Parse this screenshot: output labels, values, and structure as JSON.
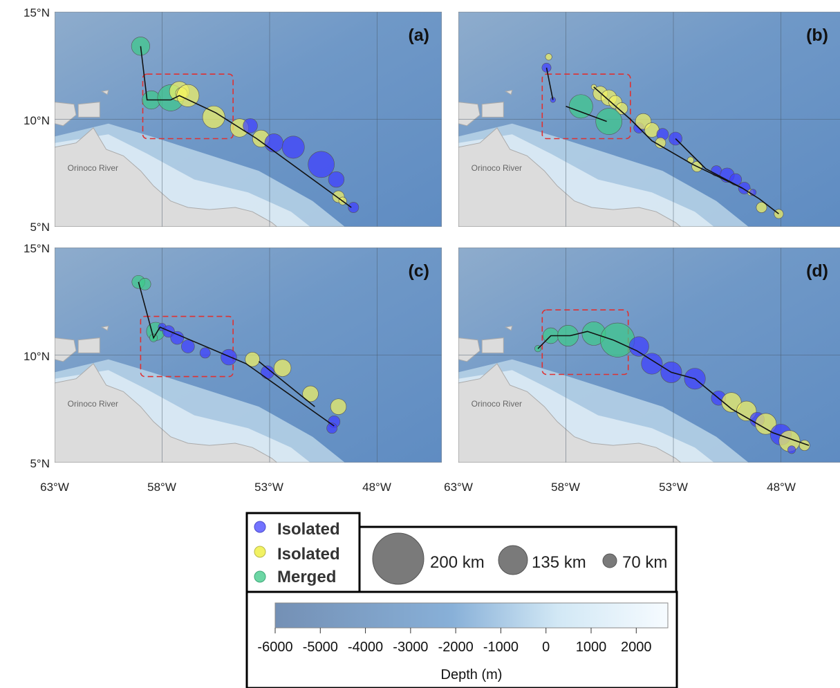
{
  "panels": [
    {
      "label": "(a)",
      "river_label": "Orinoco River",
      "track": [
        [
          -59.0,
          13.4
        ],
        [
          -58.7,
          10.9
        ],
        [
          -57.6,
          10.9
        ],
        [
          -57.2,
          11.1
        ],
        [
          -55.5,
          10.3
        ],
        [
          -53.6,
          9.1
        ],
        [
          -49.2,
          5.9
        ]
      ],
      "eddies": [
        {
          "lon": -59.0,
          "lat": 13.4,
          "size_km": 70,
          "type": "merged"
        },
        {
          "lon": -58.5,
          "lat": 10.9,
          "size_km": 70,
          "type": "merged"
        },
        {
          "lon": -57.6,
          "lat": 11.0,
          "size_km": 100,
          "type": "merged"
        },
        {
          "lon": -57.2,
          "lat": 11.3,
          "size_km": 75,
          "type": "isolated_yellow"
        },
        {
          "lon": -57.1,
          "lat": 11.2,
          "size_km": 45,
          "type": "isolated_yellow"
        },
        {
          "lon": -56.8,
          "lat": 11.1,
          "size_km": 85,
          "type": "isolated_yellow"
        },
        {
          "lon": -55.6,
          "lat": 10.1,
          "size_km": 85,
          "type": "isolated_yellow"
        },
        {
          "lon": -54.4,
          "lat": 9.6,
          "size_km": 70,
          "type": "isolated_yellow"
        },
        {
          "lon": -53.9,
          "lat": 9.7,
          "size_km": 55,
          "type": "isolated_blue"
        },
        {
          "lon": -53.4,
          "lat": 9.1,
          "size_km": 65,
          "type": "isolated_yellow"
        },
        {
          "lon": -52.8,
          "lat": 8.9,
          "size_km": 70,
          "type": "isolated_blue"
        },
        {
          "lon": -51.9,
          "lat": 8.7,
          "size_km": 85,
          "type": "isolated_blue"
        },
        {
          "lon": -50.6,
          "lat": 7.9,
          "size_km": 100,
          "type": "isolated_blue"
        },
        {
          "lon": -49.9,
          "lat": 7.2,
          "size_km": 60,
          "type": "isolated_blue"
        },
        {
          "lon": -49.8,
          "lat": 6.4,
          "size_km": 45,
          "type": "isolated_yellow"
        },
        {
          "lon": -49.6,
          "lat": 6.2,
          "size_km": 30,
          "type": "isolated_yellow"
        },
        {
          "lon": -49.1,
          "lat": 5.9,
          "size_km": 40,
          "type": "isolated_blue"
        }
      ],
      "box": {
        "lon_min": -58.9,
        "lon_max": -54.7,
        "lat_min": 9.1,
        "lat_max": 12.1
      }
    },
    {
      "label": "(b)",
      "river_label": "Orinoco River",
      "track": [
        [
          -58.9,
          12.4
        ],
        [
          -58.6,
          10.9
        ]
      ],
      "track2": [
        [
          -58.0,
          10.6
        ],
        [
          -56.1,
          9.9
        ]
      ],
      "track3": [
        [
          -56.7,
          11.5
        ],
        [
          -55.0,
          10.0
        ],
        [
          -54.0,
          9.0
        ],
        [
          -52.1,
          7.9
        ],
        [
          -49.8,
          6.8
        ],
        [
          -49.0,
          6.3
        ],
        [
          -48.1,
          5.6
        ]
      ],
      "track4": [
        [
          -52.9,
          9.1
        ],
        [
          -51.5,
          7.7
        ],
        [
          -49.8,
          6.8
        ]
      ],
      "eddies": [
        {
          "lon": -58.8,
          "lat": 12.9,
          "size_km": 25,
          "type": "isolated_yellow"
        },
        {
          "lon": -58.9,
          "lat": 12.4,
          "size_km": 35,
          "type": "isolated_blue"
        },
        {
          "lon": -58.6,
          "lat": 10.9,
          "size_km": 20,
          "type": "isolated_blue"
        },
        {
          "lon": -57.3,
          "lat": 10.6,
          "size_km": 90,
          "type": "merged"
        },
        {
          "lon": -56.7,
          "lat": 11.5,
          "size_km": 20,
          "type": "isolated_yellow"
        },
        {
          "lon": -56.4,
          "lat": 11.2,
          "size_km": 55,
          "type": "isolated_yellow"
        },
        {
          "lon": -56.0,
          "lat": 11.0,
          "size_km": 60,
          "type": "isolated_yellow"
        },
        {
          "lon": -55.7,
          "lat": 10.8,
          "size_km": 50,
          "type": "isolated_yellow"
        },
        {
          "lon": -55.4,
          "lat": 10.5,
          "size_km": 45,
          "type": "isolated_yellow"
        },
        {
          "lon": -56.0,
          "lat": 9.9,
          "size_km": 100,
          "type": "merged"
        },
        {
          "lon": -54.6,
          "lat": 9.6,
          "size_km": 40,
          "type": "isolated_blue"
        },
        {
          "lon": -54.4,
          "lat": 9.9,
          "size_km": 60,
          "type": "isolated_yellow"
        },
        {
          "lon": -54.0,
          "lat": 9.5,
          "size_km": 55,
          "type": "isolated_yellow"
        },
        {
          "lon": -53.5,
          "lat": 9.3,
          "size_km": 45,
          "type": "isolated_blue"
        },
        {
          "lon": -53.6,
          "lat": 8.9,
          "size_km": 40,
          "type": "isolated_yellow"
        },
        {
          "lon": -52.9,
          "lat": 9.1,
          "size_km": 50,
          "type": "isolated_blue"
        },
        {
          "lon": -52.2,
          "lat": 8.1,
          "size_km": 25,
          "type": "isolated_yellow"
        },
        {
          "lon": -51.9,
          "lat": 7.8,
          "size_km": 40,
          "type": "isolated_yellow"
        },
        {
          "lon": -51.0,
          "lat": 7.6,
          "size_km": 40,
          "type": "isolated_blue"
        },
        {
          "lon": -50.5,
          "lat": 7.4,
          "size_km": 55,
          "type": "isolated_blue"
        },
        {
          "lon": -50.1,
          "lat": 7.2,
          "size_km": 45,
          "type": "isolated_blue"
        },
        {
          "lon": -49.7,
          "lat": 6.8,
          "size_km": 45,
          "type": "isolated_blue"
        },
        {
          "lon": -49.4,
          "lat": 6.6,
          "size_km": 25,
          "type": "isolated_yellow"
        },
        {
          "lon": -49.3,
          "lat": 6.6,
          "size_km": 25,
          "type": "isolated_blue"
        },
        {
          "lon": -48.9,
          "lat": 5.9,
          "size_km": 40,
          "type": "isolated_yellow"
        },
        {
          "lon": -48.1,
          "lat": 5.6,
          "size_km": 35,
          "type": "isolated_yellow"
        }
      ],
      "box": {
        "lon_min": -59.1,
        "lon_max": -55.0,
        "lat_min": 9.1,
        "lat_max": 12.1
      }
    },
    {
      "label": "(c)",
      "river_label": "Orinoco River",
      "track": [
        [
          -59.1,
          13.4
        ],
        [
          -58.4,
          10.8
        ],
        [
          -58.1,
          11.3
        ],
        [
          -54.1,
          9.6
        ],
        [
          -50.0,
          6.7
        ]
      ],
      "track2": [
        [
          -53.5,
          9.7
        ],
        [
          -50.9,
          7.6
        ]
      ],
      "eddies": [
        {
          "lon": -59.1,
          "lat": 13.4,
          "size_km": 50,
          "type": "merged"
        },
        {
          "lon": -58.8,
          "lat": 13.3,
          "size_km": 45,
          "type": "merged"
        },
        {
          "lon": -58.3,
          "lat": 11.1,
          "size_km": 70,
          "type": "merged"
        },
        {
          "lon": -58.4,
          "lat": 10.8,
          "size_km": 30,
          "type": "merged"
        },
        {
          "lon": -58.0,
          "lat": 11.3,
          "size_km": 30,
          "type": "isolated_blue"
        },
        {
          "lon": -57.7,
          "lat": 11.1,
          "size_km": 45,
          "type": "isolated_blue"
        },
        {
          "lon": -57.3,
          "lat": 10.8,
          "size_km": 50,
          "type": "isolated_blue"
        },
        {
          "lon": -56.8,
          "lat": 10.4,
          "size_km": 50,
          "type": "isolated_blue"
        },
        {
          "lon": -56.0,
          "lat": 10.1,
          "size_km": 40,
          "type": "isolated_blue"
        },
        {
          "lon": -54.9,
          "lat": 9.9,
          "size_km": 60,
          "type": "isolated_blue"
        },
        {
          "lon": -53.8,
          "lat": 9.8,
          "size_km": 55,
          "type": "isolated_yellow"
        },
        {
          "lon": -53.1,
          "lat": 9.2,
          "size_km": 50,
          "type": "isolated_blue"
        },
        {
          "lon": -52.4,
          "lat": 9.4,
          "size_km": 65,
          "type": "isolated_yellow"
        },
        {
          "lon": -51.1,
          "lat": 8.2,
          "size_km": 60,
          "type": "isolated_yellow"
        },
        {
          "lon": -49.8,
          "lat": 7.6,
          "size_km": 60,
          "type": "isolated_yellow"
        },
        {
          "lon": -50.0,
          "lat": 6.9,
          "size_km": 45,
          "type": "isolated_blue"
        },
        {
          "lon": -50.1,
          "lat": 6.6,
          "size_km": 40,
          "type": "isolated_blue"
        }
      ],
      "box": {
        "lon_min": -59.0,
        "lon_max": -54.7,
        "lat_min": 9.0,
        "lat_max": 11.8
      }
    },
    {
      "label": "(d)",
      "river_label": "Orinoco River",
      "track": [
        [
          -59.3,
          10.3
        ],
        [
          -58.7,
          10.9
        ],
        [
          -57.8,
          10.9
        ],
        [
          -57.0,
          11.1
        ],
        [
          -55.8,
          10.7
        ],
        [
          -54.7,
          10.2
        ],
        [
          -53.1,
          9.2
        ],
        [
          -52.0,
          8.9
        ],
        [
          -50.3,
          7.5
        ],
        [
          -48.4,
          6.4
        ],
        [
          -46.7,
          5.8
        ]
      ],
      "eddies": [
        {
          "lon": -59.3,
          "lat": 10.3,
          "size_km": 25,
          "type": "merged"
        },
        {
          "lon": -58.7,
          "lat": 10.9,
          "size_km": 60,
          "type": "merged"
        },
        {
          "lon": -57.9,
          "lat": 10.9,
          "size_km": 80,
          "type": "merged"
        },
        {
          "lon": -56.7,
          "lat": 11.0,
          "size_km": 90,
          "type": "merged"
        },
        {
          "lon": -55.6,
          "lat": 10.7,
          "size_km": 130,
          "type": "merged"
        },
        {
          "lon": -54.6,
          "lat": 10.4,
          "size_km": 75,
          "type": "isolated_blue"
        },
        {
          "lon": -54.0,
          "lat": 9.6,
          "size_km": 80,
          "type": "isolated_blue"
        },
        {
          "lon": -53.1,
          "lat": 9.2,
          "size_km": 80,
          "type": "isolated_blue"
        },
        {
          "lon": -52.0,
          "lat": 8.9,
          "size_km": 80,
          "type": "isolated_blue"
        },
        {
          "lon": -50.9,
          "lat": 8.0,
          "size_km": 55,
          "type": "isolated_blue"
        },
        {
          "lon": -50.3,
          "lat": 7.8,
          "size_km": 75,
          "type": "isolated_yellow"
        },
        {
          "lon": -49.6,
          "lat": 7.4,
          "size_km": 75,
          "type": "isolated_yellow"
        },
        {
          "lon": -49.1,
          "lat": 7.0,
          "size_km": 55,
          "type": "isolated_blue"
        },
        {
          "lon": -48.7,
          "lat": 6.8,
          "size_km": 80,
          "type": "isolated_yellow"
        },
        {
          "lon": -48.0,
          "lat": 6.3,
          "size_km": 80,
          "type": "isolated_blue"
        },
        {
          "lon": -47.6,
          "lat": 6.0,
          "size_km": 80,
          "type": "isolated_yellow"
        },
        {
          "lon": -46.9,
          "lat": 5.8,
          "size_km": 40,
          "type": "isolated_yellow"
        },
        {
          "lon": -47.5,
          "lat": 5.6,
          "size_km": 30,
          "type": "isolated_blue"
        }
      ],
      "box": {
        "lon_min": -59.1,
        "lon_max": -55.1,
        "lat_min": 9.1,
        "lat_max": 12.1
      }
    }
  ],
  "axes": {
    "lat_ticks": [
      "15°N",
      "10°N",
      "5°N"
    ],
    "lon_ticks": [
      "63°W",
      "58°W",
      "53°W",
      "48°W"
    ],
    "lon_range": [
      -63,
      -45
    ],
    "lat_range": [
      5,
      15
    ]
  },
  "legend": {
    "items": [
      {
        "label": "Isolated",
        "color": "#3f3fff"
      },
      {
        "label": "Isolated",
        "color": "#f2f263"
      },
      {
        "label": "Merged",
        "color": "#3ec98a"
      }
    ],
    "sizes": [
      {
        "label": "200 km",
        "size_km": 200
      },
      {
        "label": "135 km",
        "size_km": 135
      },
      {
        "label": "70 km",
        "size_km": 70
      }
    ]
  },
  "colorbar": {
    "ticks": [
      "-6000",
      "-5000",
      "-4000",
      "-3000",
      "-2000",
      "-1000",
      "0",
      "1000",
      "2000"
    ],
    "tick_values": [
      -6000,
      -5000,
      -4000,
      -3000,
      -2000,
      -1000,
      0,
      1000,
      2000
    ],
    "range": [
      -6000,
      2700
    ],
    "title": "Depth (m)",
    "colors": [
      "#7490b5",
      "#88b0d8",
      "#bcdcef",
      "#f6fbff"
    ]
  },
  "colors": {
    "isolated_blue": "#3f3fff",
    "isolated_yellow": "#f2f263",
    "merged": "#3ec98a",
    "land": "#dcdcdc",
    "box": "#e03030"
  }
}
